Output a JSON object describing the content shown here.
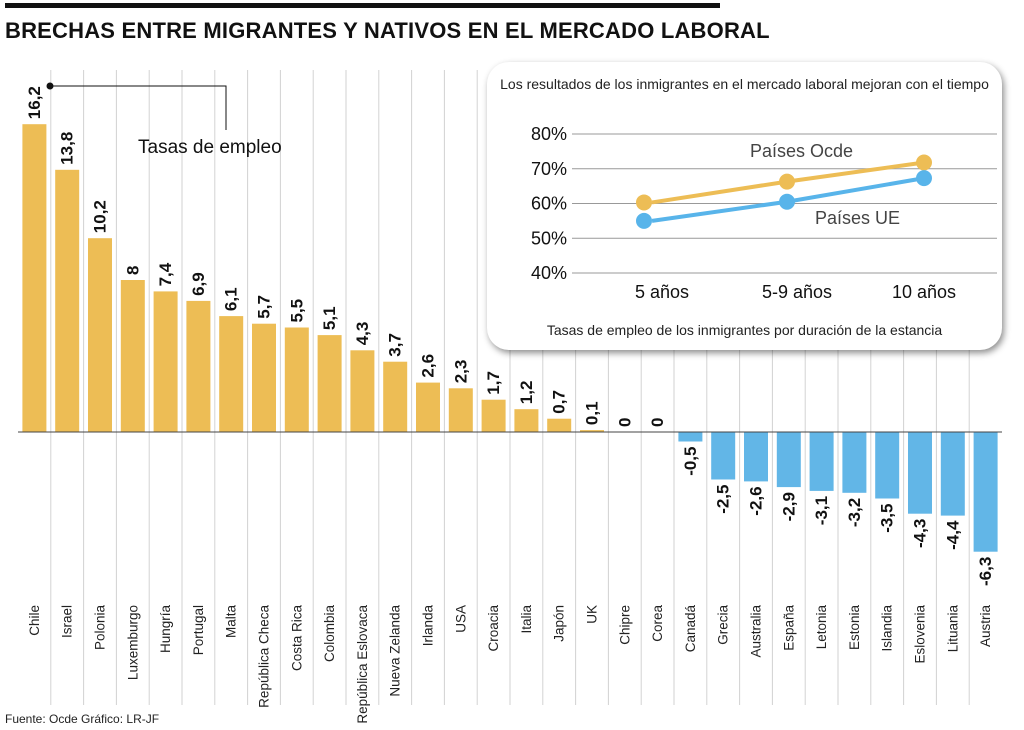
{
  "title": "BRECHAS ENTRE MIGRANTES Y NATIVOS EN EL MERCADO LABORAL",
  "source": "Fuente: Ocde Gráfico: LR-JF",
  "colors": {
    "positive": "#EDBD55",
    "negative": "#62B6E7",
    "ocde_line": "#EDBD55",
    "ue_line": "#58B4EA"
  },
  "chart_data": [
    {
      "type": "bar",
      "title": "",
      "annotation": "Tasas de empleo",
      "categories": [
        "Chile",
        "Israel",
        "Polonia",
        "Luxemburgo",
        "Hungría",
        "Portugal",
        "Malta",
        "República Checa",
        "Costa Rica",
        "Colombia",
        "República Eslovaca",
        "Nueva Zelanda",
        "Irlanda",
        "USA",
        "Croacia",
        "Italia",
        "Japón",
        "UK",
        "Chipre",
        "Corea",
        "Canadá",
        "Grecia",
        "Australia",
        "España",
        "Letonia",
        "Estonia",
        "Islandia",
        "Eslovenia",
        "Lituania",
        "Austria"
      ],
      "values": [
        16.2,
        13.8,
        10.2,
        8,
        7.4,
        6.9,
        6.1,
        5.7,
        5.5,
        5.1,
        4.3,
        3.7,
        2.6,
        2.3,
        1.7,
        1.2,
        0.7,
        0.1,
        0,
        0,
        -0.5,
        -2.5,
        -2.6,
        -2.9,
        -3.1,
        -3.2,
        -3.5,
        -4.3,
        -4.4,
        -6.3
      ],
      "labels": [
        "16,2",
        "13,8",
        "10,2",
        "8",
        "7,4",
        "6,9",
        "6,1",
        "5,7",
        "5,5",
        "5,1",
        "4,3",
        "3,7",
        "2,6",
        "2,3",
        "1,7",
        "1,2",
        "0,7",
        "0,1",
        "0",
        "0",
        "-0,5",
        "-2,5",
        "-2,6",
        "-2,9",
        "-3,1",
        "-3,2",
        "-3,5",
        "-4,3",
        "-4,4",
        "-6,3"
      ],
      "grid": "vertical separators"
    },
    {
      "type": "line",
      "title": "Los resultados de los inmigrantes en el mercado laboral mejoran con el tiempo",
      "xlabel": "Tasas de empleo de los inmigrantes por duración de la estancia",
      "categories": [
        "5 años",
        "5-9 años",
        "10 años"
      ],
      "ylim": [
        40,
        80
      ],
      "yticks": [
        "80%",
        "70%",
        "60%",
        "50%",
        "40%"
      ],
      "series": [
        {
          "name": "Países Ocde",
          "values": [
            60.3,
            66.3,
            71.8
          ]
        },
        {
          "name": "Países UE",
          "values": [
            55,
            60.5,
            67.3
          ]
        }
      ],
      "grid": true
    }
  ]
}
